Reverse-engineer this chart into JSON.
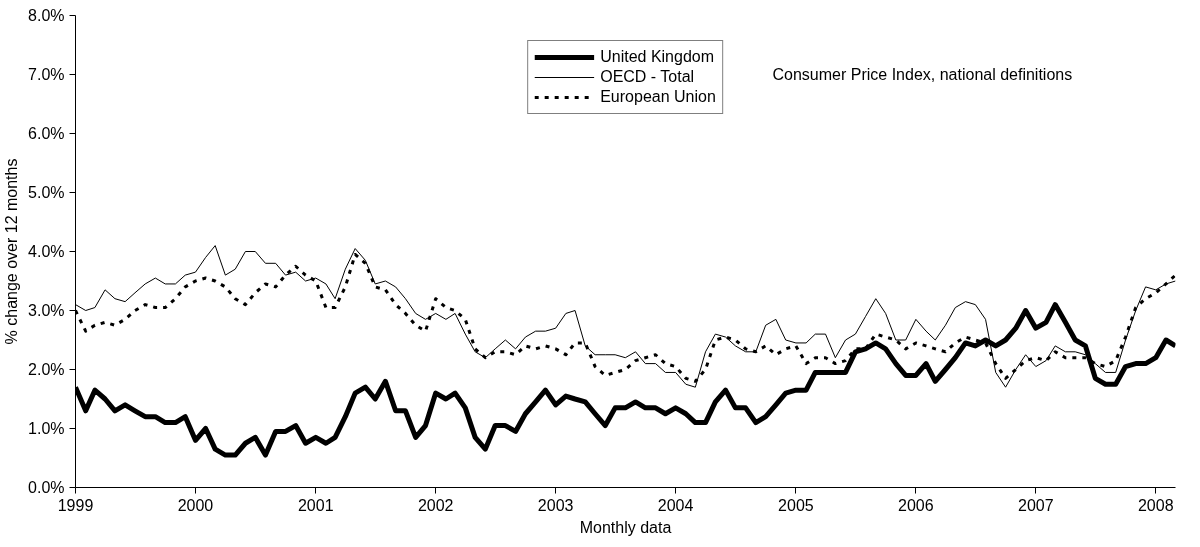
{
  "chart_data": {
    "type": "line",
    "xlabel": "Monthly data",
    "ylabel": "% change over 12 months",
    "annotations": [
      "Consumer Price Index, national definitions"
    ],
    "x": [
      "1999-01",
      "1999-02",
      "1999-03",
      "1999-04",
      "1999-05",
      "1999-06",
      "1999-07",
      "1999-08",
      "1999-09",
      "1999-10",
      "1999-11",
      "1999-12",
      "2000-01",
      "2000-02",
      "2000-03",
      "2000-04",
      "2000-05",
      "2000-06",
      "2000-07",
      "2000-08",
      "2000-09",
      "2000-10",
      "2000-11",
      "2000-12",
      "2001-01",
      "2001-02",
      "2001-03",
      "2001-04",
      "2001-05",
      "2001-06",
      "2001-07",
      "2001-08",
      "2001-09",
      "2001-10",
      "2001-11",
      "2001-12",
      "2002-01",
      "2002-02",
      "2002-03",
      "2002-04",
      "2002-05",
      "2002-06",
      "2002-07",
      "2002-08",
      "2002-09",
      "2002-10",
      "2002-11",
      "2002-12",
      "2003-01",
      "2003-02",
      "2003-03",
      "2003-04",
      "2003-05",
      "2003-06",
      "2003-07",
      "2003-08",
      "2003-09",
      "2003-10",
      "2003-11",
      "2003-12",
      "2004-01",
      "2004-02",
      "2004-03",
      "2004-04",
      "2004-05",
      "2004-06",
      "2004-07",
      "2004-08",
      "2004-09",
      "2004-10",
      "2004-11",
      "2004-12",
      "2005-01",
      "2005-02",
      "2005-03",
      "2005-04",
      "2005-05",
      "2005-06",
      "2005-07",
      "2005-08",
      "2005-09",
      "2005-10",
      "2005-11",
      "2005-12",
      "2006-01",
      "2006-02",
      "2006-03",
      "2006-04",
      "2006-05",
      "2006-06",
      "2006-07",
      "2006-08",
      "2006-09",
      "2006-10",
      "2006-11",
      "2006-12",
      "2007-01",
      "2007-02",
      "2007-03",
      "2007-04",
      "2007-05",
      "2007-06",
      "2007-07",
      "2007-08",
      "2007-09",
      "2007-10",
      "2007-11",
      "2007-12",
      "2008-01",
      "2008-02",
      "2008-03"
    ],
    "xlim": [
      "1999-01",
      "2008-03"
    ],
    "xticks": [
      "1999",
      "2000",
      "2001",
      "2002",
      "2003",
      "2004",
      "2005",
      "2006",
      "2007",
      "2008"
    ],
    "ylim": [
      0,
      8
    ],
    "yticks": [
      {
        "value": 0,
        "label": "0.0%"
      },
      {
        "value": 1,
        "label": "1.0%"
      },
      {
        "value": 2,
        "label": "2.0%"
      },
      {
        "value": 3,
        "label": "3.0%"
      },
      {
        "value": 4,
        "label": "4.0%"
      },
      {
        "value": 5,
        "label": "5.0%"
      },
      {
        "value": 6,
        "label": "6.0%"
      },
      {
        "value": 7,
        "label": "7.0%"
      },
      {
        "value": 8,
        "label": "8.0%"
      }
    ],
    "grid": false,
    "legend": "top",
    "marker": "none",
    "series": [
      {
        "name": "United Kingdom",
        "color": "#000000",
        "line_style": "solid",
        "values": [
          1.7,
          1.3,
          1.65,
          1.5,
          1.3,
          1.4,
          1.3,
          1.2,
          1.2,
          1.1,
          1.1,
          1.2,
          0.8,
          1.0,
          0.65,
          0.55,
          0.55,
          0.75,
          0.85,
          0.55,
          0.95,
          0.95,
          1.05,
          0.75,
          0.85,
          0.75,
          0.85,
          1.2,
          1.6,
          1.7,
          1.5,
          1.8,
          1.3,
          1.3,
          0.85,
          1.05,
          1.6,
          1.5,
          1.6,
          1.35,
          0.85,
          0.65,
          1.05,
          1.05,
          0.95,
          1.25,
          1.45,
          1.65,
          1.4,
          1.55,
          1.5,
          1.45,
          1.25,
          1.05,
          1.35,
          1.35,
          1.45,
          1.35,
          1.35,
          1.25,
          1.35,
          1.25,
          1.1,
          1.1,
          1.45,
          1.65,
          1.35,
          1.35,
          1.1,
          1.2,
          1.4,
          1.6,
          1.65,
          1.65,
          1.95,
          1.95,
          1.95,
          1.95,
          2.3,
          2.35,
          2.45,
          2.35,
          2.1,
          1.9,
          1.9,
          2.1,
          1.8,
          2.0,
          2.2,
          2.45,
          2.4,
          2.5,
          2.4,
          2.5,
          2.7,
          3.0,
          2.7,
          2.8,
          3.1,
          2.8,
          2.5,
          2.4,
          1.85,
          1.75,
          1.75,
          2.05,
          2.1,
          2.1,
          2.2,
          2.5,
          2.4
        ]
      },
      {
        "name": "OECD - Total",
        "color": "#000000",
        "line_style": "solid",
        "values": [
          3.1,
          3.0,
          3.05,
          3.35,
          3.2,
          3.15,
          3.3,
          3.45,
          3.55,
          3.45,
          3.45,
          3.6,
          3.65,
          3.9,
          4.1,
          3.6,
          3.7,
          4.0,
          4.0,
          3.8,
          3.8,
          3.6,
          3.65,
          3.5,
          3.55,
          3.45,
          3.2,
          3.7,
          4.05,
          3.85,
          3.45,
          3.5,
          3.4,
          3.2,
          2.95,
          2.85,
          2.95,
          2.85,
          2.95,
          2.6,
          2.3,
          2.2,
          2.35,
          2.5,
          2.35,
          2.55,
          2.65,
          2.65,
          2.7,
          2.95,
          3.0,
          2.4,
          2.25,
          2.25,
          2.25,
          2.2,
          2.3,
          2.1,
          2.1,
          1.95,
          1.95,
          1.75,
          1.7,
          2.3,
          2.6,
          2.55,
          2.4,
          2.3,
          2.3,
          2.75,
          2.85,
          2.5,
          2.45,
          2.45,
          2.6,
          2.6,
          2.2,
          2.5,
          2.6,
          2.9,
          3.2,
          2.95,
          2.5,
          2.5,
          2.85,
          2.65,
          2.5,
          2.75,
          3.05,
          3.15,
          3.1,
          2.85,
          1.95,
          1.7,
          2.0,
          2.25,
          2.05,
          2.15,
          2.4,
          2.3,
          2.3,
          2.25,
          2.1,
          1.95,
          1.95,
          2.5,
          3.0,
          3.4,
          3.35,
          3.45,
          3.5
        ]
      },
      {
        "name": "European Union",
        "color": "#000000",
        "line_style": "dashed",
        "values": [
          3.0,
          2.65,
          2.75,
          2.8,
          2.75,
          2.85,
          3.0,
          3.1,
          3.05,
          3.05,
          3.2,
          3.4,
          3.5,
          3.55,
          3.5,
          3.4,
          3.2,
          3.1,
          3.3,
          3.45,
          3.4,
          3.6,
          3.75,
          3.6,
          3.5,
          3.05,
          3.05,
          3.4,
          3.95,
          3.8,
          3.4,
          3.35,
          3.1,
          2.95,
          2.75,
          2.65,
          3.2,
          3.05,
          3.0,
          2.85,
          2.35,
          2.2,
          2.3,
          2.3,
          2.25,
          2.4,
          2.35,
          2.4,
          2.35,
          2.25,
          2.45,
          2.45,
          2.05,
          1.9,
          1.95,
          2.0,
          2.15,
          2.2,
          2.25,
          2.1,
          2.05,
          1.85,
          1.8,
          2.0,
          2.5,
          2.55,
          2.5,
          2.35,
          2.3,
          2.4,
          2.25,
          2.35,
          2.4,
          2.1,
          2.2,
          2.2,
          2.1,
          2.15,
          2.35,
          2.35,
          2.6,
          2.55,
          2.5,
          2.35,
          2.45,
          2.4,
          2.35,
          2.3,
          2.45,
          2.55,
          2.5,
          2.45,
          2.1,
          1.85,
          2.0,
          2.15,
          2.2,
          2.15,
          2.3,
          2.2,
          2.2,
          2.2,
          2.1,
          2.05,
          2.15,
          2.55,
          3.05,
          3.2,
          3.3,
          3.45,
          3.6
        ]
      }
    ]
  }
}
